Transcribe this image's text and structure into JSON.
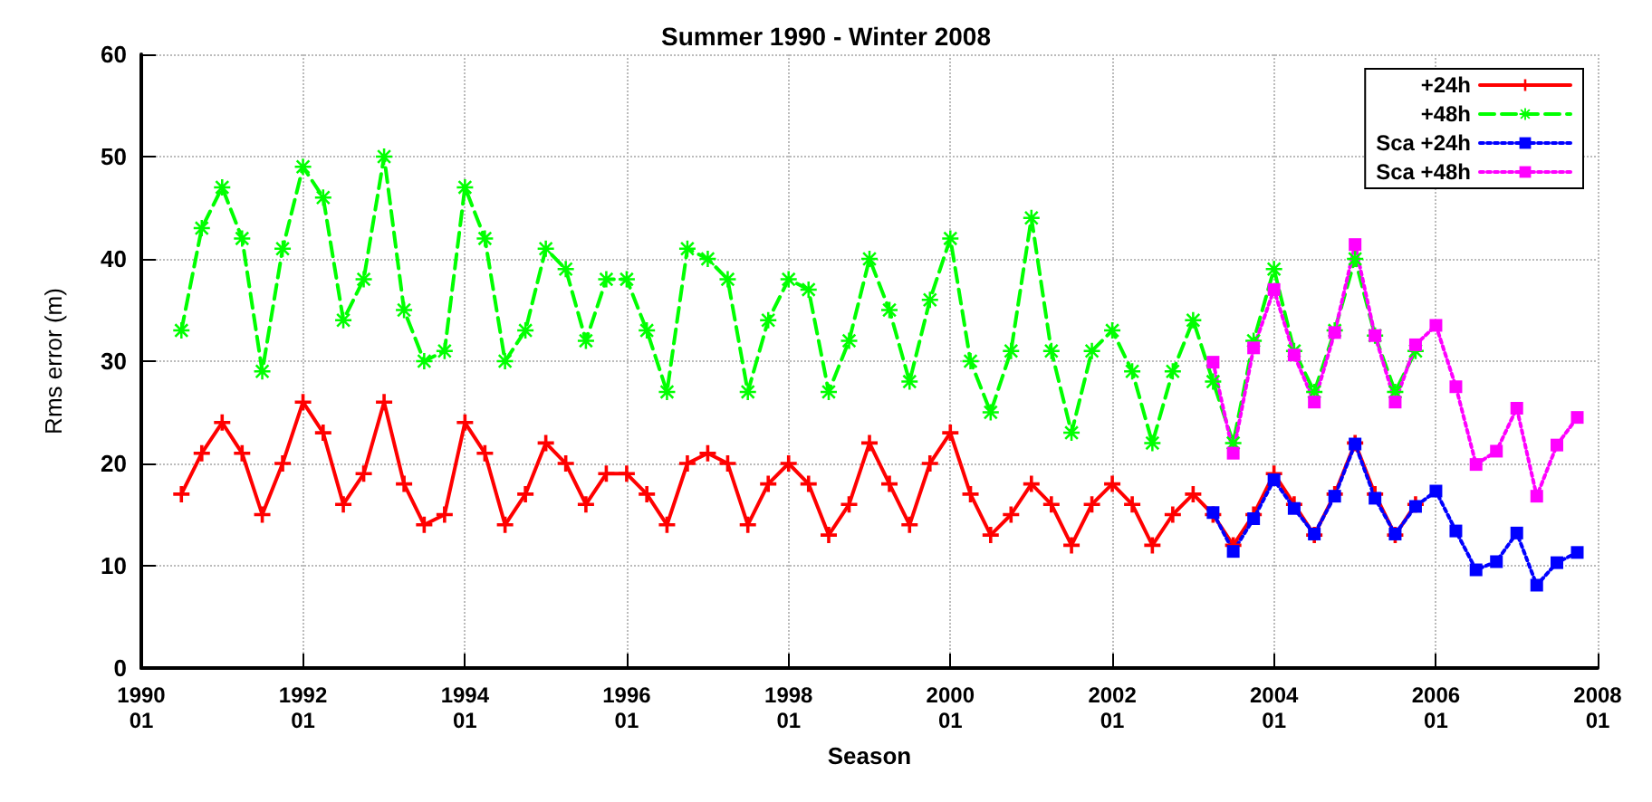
{
  "chart_data": {
    "type": "line",
    "title": "Summer 1990 - Winter 2008",
    "xlabel": "Season",
    "ylabel": "Rms error (m)",
    "xlim": [
      "1990-01",
      "2008-01"
    ],
    "xticks": [
      {
        "value": "1990-01",
        "label": "1990\n01"
      },
      {
        "value": "1992-01",
        "label": "1992\n01"
      },
      {
        "value": "1994-01",
        "label": "1994\n01"
      },
      {
        "value": "1996-01",
        "label": "1996\n01"
      },
      {
        "value": "1998-01",
        "label": "1998\n01"
      },
      {
        "value": "2000-01",
        "label": "2000\n01"
      },
      {
        "value": "2002-01",
        "label": "2002\n01"
      },
      {
        "value": "2004-01",
        "label": "2004\n01"
      },
      {
        "value": "2006-01",
        "label": "2006\n01"
      },
      {
        "value": "2008-01",
        "label": "2008\n01"
      }
    ],
    "ylim": [
      0,
      60
    ],
    "yticks": [
      0,
      10,
      20,
      30,
      40,
      50,
      60
    ],
    "grid": true,
    "legend": "top right",
    "x": [
      "1990-07",
      "1990-10",
      "1991-01",
      "1991-04",
      "1991-07",
      "1991-10",
      "1992-01",
      "1992-04",
      "1992-07",
      "1992-10",
      "1993-01",
      "1993-04",
      "1993-07",
      "1993-10",
      "1994-01",
      "1994-04",
      "1994-07",
      "1994-10",
      "1995-01",
      "1995-04",
      "1995-07",
      "1995-10",
      "1996-01",
      "1996-04",
      "1996-07",
      "1996-10",
      "1997-01",
      "1997-04",
      "1997-07",
      "1997-10",
      "1998-01",
      "1998-04",
      "1998-07",
      "1998-10",
      "1999-01",
      "1999-04",
      "1999-07",
      "1999-10",
      "2000-01",
      "2000-04",
      "2000-07",
      "2000-10",
      "2001-01",
      "2001-04",
      "2001-07",
      "2001-10",
      "2002-01",
      "2002-04",
      "2002-07",
      "2002-10",
      "2003-01",
      "2003-04",
      "2003-07",
      "2003-10",
      "2004-01",
      "2004-04",
      "2004-07",
      "2004-10",
      "2005-01",
      "2005-04",
      "2005-07",
      "2005-10"
    ],
    "series": [
      {
        "name": "+24h",
        "color": "#ff0000",
        "marker": "cross",
        "line_style": "solid",
        "values": [
          17,
          21,
          24,
          21,
          15,
          20,
          26,
          23,
          16,
          19,
          26,
          18,
          14,
          15,
          24,
          21,
          14,
          17,
          22,
          20,
          16,
          19,
          19,
          17,
          14,
          20,
          21,
          20,
          14,
          18,
          20,
          18,
          13,
          16,
          22,
          18,
          14,
          20,
          23,
          17,
          13,
          15,
          18,
          16,
          12,
          16,
          18,
          16,
          12,
          15,
          17,
          15,
          12,
          15,
          19,
          16,
          13,
          17,
          22,
          17,
          13,
          16
        ]
      },
      {
        "name": "+48h",
        "color": "#00ff00",
        "marker": "star",
        "line_style": "dashed",
        "values": [
          33,
          43,
          47,
          42,
          29,
          41,
          49,
          46,
          34,
          38,
          50,
          35,
          30,
          31,
          47,
          42,
          30,
          33,
          41,
          39,
          32,
          38,
          38,
          33,
          27,
          41,
          40,
          38,
          27,
          34,
          38,
          37,
          27,
          32,
          40,
          35,
          28,
          36,
          42,
          30,
          25,
          31,
          44,
          31,
          23,
          31,
          33,
          29,
          22,
          29,
          34,
          28,
          22,
          32,
          39,
          31,
          27,
          33,
          40,
          32.5,
          27,
          31
        ]
      },
      {
        "name": "Sca +24h",
        "color": "#0000ff",
        "marker": "square",
        "line_style": "dotted",
        "x": [
          "2003-04",
          "2003-07",
          "2003-10",
          "2004-01",
          "2004-04",
          "2004-07",
          "2004-10",
          "2005-01",
          "2005-04",
          "2005-07",
          "2005-10",
          "2006-01",
          "2006-04",
          "2006-07",
          "2006-10",
          "2007-01",
          "2007-04",
          "2007-07",
          "2007-10"
        ],
        "values": [
          15.2,
          11.4,
          14.6,
          18.4,
          15.6,
          13.1,
          16.8,
          21.9,
          16.6,
          13.1,
          15.8,
          17.3,
          13.4,
          9.6,
          10.4,
          13.2,
          8.1,
          10.3,
          11.3
        ]
      },
      {
        "name": "Sca +48h",
        "color": "#ff00ff",
        "marker": "square",
        "line_style": "dotted",
        "x": [
          "2003-04",
          "2003-07",
          "2003-10",
          "2004-01",
          "2004-04",
          "2004-07",
          "2004-10",
          "2005-01",
          "2005-04",
          "2005-07",
          "2005-10",
          "2006-01",
          "2006-04",
          "2006-07",
          "2006-10",
          "2007-01",
          "2007-04",
          "2007-07",
          "2007-10"
        ],
        "values": [
          29.9,
          21,
          31.3,
          37,
          30.6,
          26,
          32.8,
          41.4,
          32.5,
          26,
          31.6,
          33.5,
          27.5,
          19.9,
          21.2,
          25.4,
          16.8,
          21.8,
          24.5
        ]
      }
    ]
  }
}
